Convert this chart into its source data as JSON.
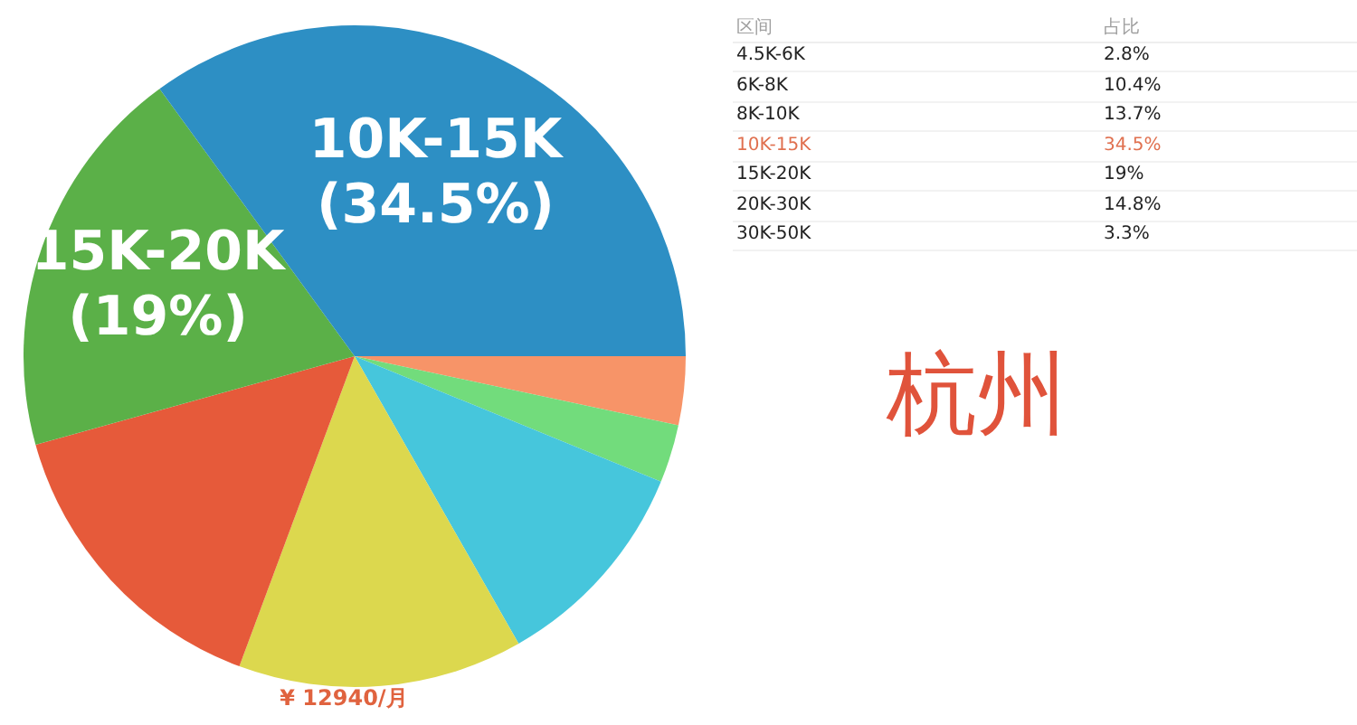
{
  "chart_data": [
    {
      "type": "pie",
      "title": "杭州",
      "categories": [
        null,
        null,
        null,
        null,
        null,
        "15K-20K",
        "10K-15K"
      ],
      "values": [
        3.3,
        2.8,
        10.4,
        13.7,
        14.8,
        19,
        34.5
      ],
      "colors": [
        "#f79468",
        "#72dc7c",
        "#46c6dc",
        "#dcd84e",
        "#e65a3a",
        "#5bb048",
        "#2d8fc4"
      ],
      "value_labels": [
        null,
        null,
        null,
        null,
        null,
        "(19%)",
        "(34.5%)"
      ],
      "annotations": [
        "¥ 12940/月"
      ]
    },
    {
      "type": "other",
      "categories": [
        "4.5K-6K",
        "6K-8K",
        "8K-10K",
        "10K-15K",
        "15K-20K",
        "20K-30K",
        "30K-50K"
      ],
      "value_labels": [
        "2.8%",
        "10.4%",
        "13.7%",
        "34.5%",
        "19%",
        "14.8%",
        "3.3%"
      ],
      "colors": [
        "#222222",
        "#222222",
        "#222222",
        "#e0704f",
        "#222222",
        "#222222",
        "#222222"
      ],
      "annotations": [
        "区间",
        "占比"
      ]
    }
  ]
}
